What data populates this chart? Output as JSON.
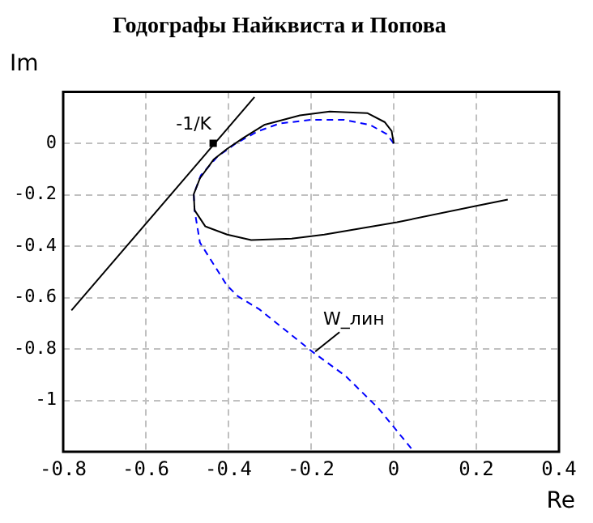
{
  "chart_data": {
    "type": "line",
    "title": "Годографы Найквиста и Попова",
    "xlabel": "Re",
    "ylabel": "Im",
    "xlim": [
      -0.8,
      0.4
    ],
    "xticks": [
      -0.8,
      -0.6,
      -0.4,
      -0.2,
      0,
      0.2,
      0.4
    ],
    "ylim": [
      -1.2,
      0.2
    ],
    "yticks": [
      -1,
      -0.8,
      -0.6,
      -0.4,
      -0.2,
      0
    ],
    "grid": true,
    "legend": false,
    "series": [
      {
        "color": "#000000",
        "line_style": "solid",
        "x": [
          0,
          -0.005,
          -0.022,
          -0.064,
          -0.155,
          -0.227,
          -0.312,
          -0.364,
          -0.403,
          -0.436,
          -0.469,
          -0.484,
          -0.482,
          -0.456,
          -0.403,
          -0.345,
          -0.247,
          -0.168,
          0.008,
          0.198,
          0.276
        ],
        "values": [
          0,
          0.048,
          0.083,
          0.118,
          0.124,
          0.109,
          0.073,
          0.021,
          -0.021,
          -0.063,
          -0.136,
          -0.198,
          -0.26,
          -0.323,
          -0.355,
          -0.376,
          -0.371,
          -0.355,
          -0.307,
          -0.244,
          -0.219
        ]
      },
      {
        "color": "#0000ff",
        "line_style": "dashed",
        "x": [
          0,
          -0.017,
          -0.056,
          -0.12,
          -0.199,
          -0.277,
          -0.33,
          -0.382,
          -0.427,
          -0.467,
          -0.484,
          -0.482,
          -0.469,
          -0.404,
          -0.378,
          -0.325,
          -0.195,
          -0.116,
          -0.037,
          0.043
        ],
        "values": [
          0,
          0.036,
          0.071,
          0.092,
          0.092,
          0.077,
          0.046,
          0,
          -0.052,
          -0.125,
          -0.198,
          -0.26,
          -0.386,
          -0.552,
          -0.594,
          -0.646,
          -0.813,
          -0.906,
          -1.031,
          -1.188
        ]
      },
      {
        "color": "#000000",
        "line_style": "solid",
        "x": [
          -0.78,
          -0.337
        ],
        "values": [
          -0.65,
          0.18
        ]
      },
      {
        "type": "scatter",
        "color": "#000000",
        "marker": "square",
        "x": [
          -0.437
        ],
        "values": [
          0
        ]
      }
    ],
    "annotations": [
      {
        "text": "-1/K",
        "x": -0.437,
        "y": 0
      },
      {
        "text": "W_лин",
        "x": -0.19,
        "y": -0.81
      }
    ]
  }
}
